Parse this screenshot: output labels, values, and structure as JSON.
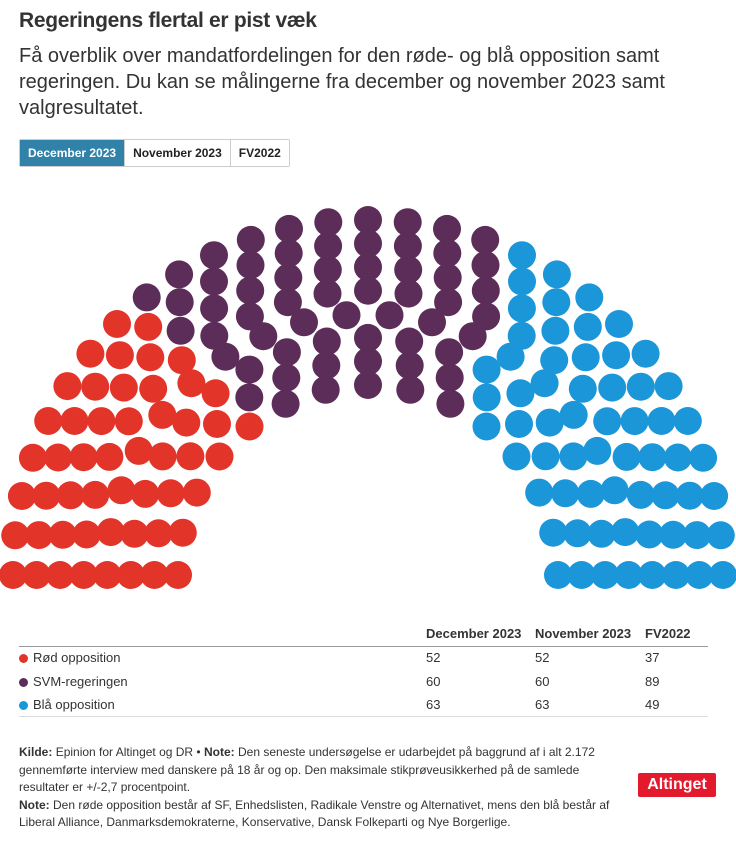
{
  "header": {
    "title": "Regeringens flertal er pist væk",
    "subtitle": "Få overblik over mandatfordelingen for den røde- og blå opposition samt regeringen. Du kan se målingerne fra december og november 2023 samt valgresultatet."
  },
  "tabs": [
    {
      "label": "December 2023",
      "active": true
    },
    {
      "label": "November 2023",
      "active": false
    },
    {
      "label": "FV2022",
      "active": false
    }
  ],
  "chart_data": {
    "type": "parliament",
    "title": "Regeringens flertal er pist væk",
    "total_seats": 175,
    "selected_period": "December 2023",
    "periods": [
      "December 2023",
      "November 2023",
      "FV2022"
    ],
    "series": [
      {
        "name": "Rød opposition",
        "color": "#e3342a",
        "values": [
          52,
          52,
          37
        ]
      },
      {
        "name": "SVM-regeringen",
        "color": "#5c2d59",
        "values": [
          60,
          60,
          89
        ]
      },
      {
        "name": "Blå opposition",
        "color": "#1a96d9",
        "values": [
          63,
          63,
          49
        ]
      }
    ]
  },
  "table": {
    "headers": [
      "December 2023",
      "November 2023",
      "FV2022"
    ],
    "rows": [
      {
        "label": "Rød opposition",
        "color": "#e3342a",
        "values": [
          "52",
          "52",
          "37"
        ]
      },
      {
        "label": "SVM-regeringen",
        "color": "#5c2d59",
        "values": [
          "60",
          "60",
          "89"
        ]
      },
      {
        "label": "Blå opposition",
        "color": "#1a96d9",
        "values": [
          "63",
          "63",
          "49"
        ]
      }
    ]
  },
  "footer": {
    "source_label": "Kilde:",
    "source_text": "Epinion for Altinget og DR •",
    "note1_label": "Note:",
    "note1_text": "Den seneste undersøgelse er udarbejdet på baggrund af i alt 2.172 gennemførte interview med danskere på 18 år og op. Den maksimale stikprøveusikkerhed på de samlede resultater er +/-2,7 procentpoint.",
    "note2_label": "Note:",
    "note2_text": "Den røde opposition består af SF, Enhedslisten, Radikale Venstre og Alternativet, mens den blå består af Liberal Alliance, Danmarksdemokraterne, Konservative, Dansk Folkeparti og Nye Borgerlige."
  },
  "logo": {
    "text": "Altinget"
  }
}
